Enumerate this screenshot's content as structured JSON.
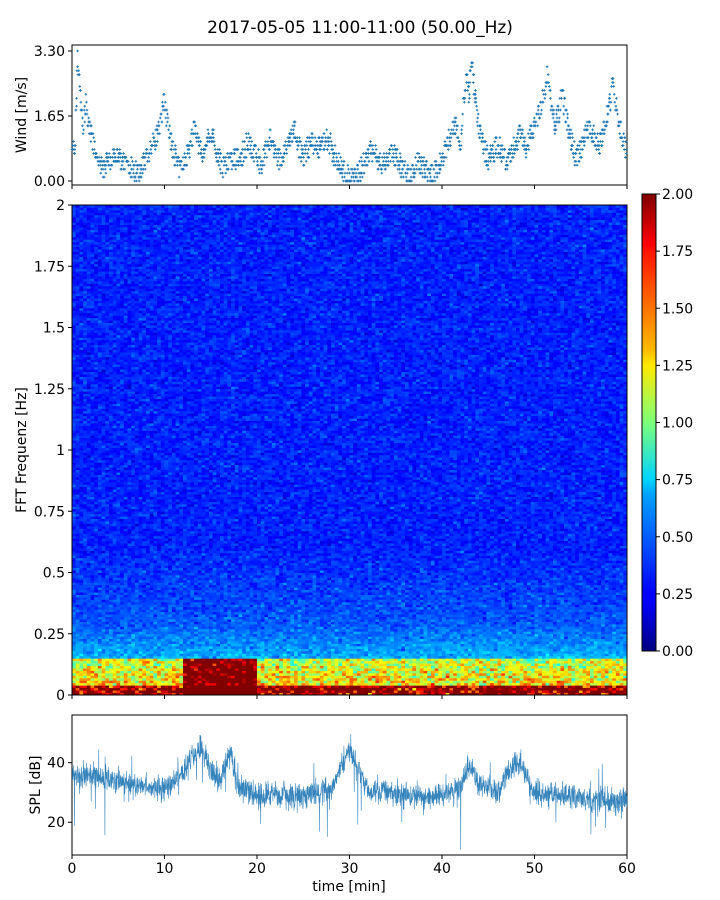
{
  "title": "2017-05-05 11:00-11:00 (50.00_Hz)",
  "chart_data": [
    {
      "type": "scatter",
      "name": "wind",
      "ylabel": "Wind [m/s]",
      "ylim": [
        0,
        3.3
      ],
      "yticks": [
        "0.00",
        "1.65",
        "3.30"
      ],
      "xlim": [
        0,
        60
      ],
      "marker_color": "#1f77b4",
      "points_xy": [
        [
          0.0,
          1.0
        ],
        [
          0.3,
          0.6
        ],
        [
          0.6,
          3.1
        ],
        [
          0.9,
          2.2
        ],
        [
          1.2,
          1.3
        ],
        [
          1.5,
          1.9
        ],
        [
          2.0,
          1.2
        ],
        [
          2.5,
          0.8
        ],
        [
          3.0,
          0.3
        ],
        [
          3.5,
          0.4
        ],
        [
          4.0,
          0.5
        ],
        [
          4.5,
          0.6
        ],
        [
          5.0,
          0.6
        ],
        [
          5.5,
          0.5
        ],
        [
          6.0,
          0.4
        ],
        [
          6.5,
          0.3
        ],
        [
          7.0,
          0.2
        ],
        [
          7.5,
          0.3
        ],
        [
          8.0,
          0.6
        ],
        [
          8.5,
          0.8
        ],
        [
          9.0,
          1.0
        ],
        [
          9.5,
          1.4
        ],
        [
          9.9,
          2.0
        ],
        [
          10.3,
          1.5
        ],
        [
          10.7,
          1.0
        ],
        [
          11.2,
          0.6
        ],
        [
          11.6,
          0.3
        ],
        [
          12.0,
          0.4
        ],
        [
          12.4,
          0.6
        ],
        [
          12.8,
          0.9
        ],
        [
          13.2,
          1.3
        ],
        [
          13.6,
          1.0
        ],
        [
          14.0,
          0.7
        ],
        [
          14.4,
          0.8
        ],
        [
          14.8,
          1.2
        ],
        [
          15.2,
          1.1
        ],
        [
          15.6,
          0.7
        ],
        [
          16.0,
          0.5
        ],
        [
          16.5,
          0.3
        ],
        [
          17.0,
          0.5
        ],
        [
          17.5,
          0.6
        ],
        [
          18.0,
          0.5
        ],
        [
          18.5,
          0.7
        ],
        [
          19.0,
          1.0
        ],
        [
          19.5,
          0.8
        ],
        [
          20.0,
          0.6
        ],
        [
          20.5,
          0.4
        ],
        [
          21.0,
          0.8
        ],
        [
          21.5,
          1.1
        ],
        [
          22.0,
          0.8
        ],
        [
          22.5,
          0.5
        ],
        [
          23.0,
          0.7
        ],
        [
          23.5,
          1.0
        ],
        [
          24.0,
          1.3
        ],
        [
          24.5,
          0.9
        ],
        [
          25.0,
          0.6
        ],
        [
          25.5,
          0.8
        ],
        [
          26.0,
          1.0
        ],
        [
          26.5,
          0.8
        ],
        [
          27.0,
          0.9
        ],
        [
          27.5,
          1.1
        ],
        [
          28.0,
          0.9
        ],
        [
          28.5,
          0.6
        ],
        [
          29.0,
          0.4
        ],
        [
          29.5,
          0.2
        ],
        [
          30.0,
          0.1
        ],
        [
          30.5,
          0.1
        ],
        [
          31.0,
          0.2
        ],
        [
          31.5,
          0.4
        ],
        [
          32.0,
          0.6
        ],
        [
          32.5,
          0.8
        ],
        [
          33.0,
          0.6
        ],
        [
          33.5,
          0.4
        ],
        [
          34.0,
          0.5
        ],
        [
          34.5,
          0.6
        ],
        [
          35.0,
          0.7
        ],
        [
          35.5,
          0.4
        ],
        [
          36.0,
          0.3
        ],
        [
          36.5,
          0.2
        ],
        [
          37.0,
          0.3
        ],
        [
          37.5,
          0.5
        ],
        [
          38.0,
          0.3
        ],
        [
          38.5,
          0.2
        ],
        [
          39.0,
          0.1
        ],
        [
          39.5,
          0.3
        ],
        [
          40.0,
          0.6
        ],
        [
          40.5,
          0.9
        ],
        [
          41.0,
          1.2
        ],
        [
          41.5,
          1.4
        ],
        [
          42.0,
          1.0
        ],
        [
          42.3,
          1.8
        ],
        [
          42.6,
          2.6
        ],
        [
          42.9,
          2.2
        ],
        [
          43.2,
          3.2
        ],
        [
          43.5,
          2.3
        ],
        [
          43.8,
          1.6
        ],
        [
          44.2,
          1.1
        ],
        [
          44.6,
          0.8
        ],
        [
          45.0,
          0.6
        ],
        [
          45.5,
          0.7
        ],
        [
          46.0,
          0.9
        ],
        [
          46.5,
          0.7
        ],
        [
          47.0,
          0.5
        ],
        [
          47.5,
          0.7
        ],
        [
          48.0,
          1.0
        ],
        [
          48.5,
          1.2
        ],
        [
          49.0,
          0.8
        ],
        [
          49.5,
          1.1
        ],
        [
          50.0,
          1.4
        ],
        [
          50.5,
          1.8
        ],
        [
          51.0,
          2.1
        ],
        [
          51.4,
          2.7
        ],
        [
          51.8,
          1.9
        ],
        [
          52.2,
          1.4
        ],
        [
          52.6,
          1.7
        ],
        [
          53.0,
          2.2
        ],
        [
          53.5,
          1.5
        ],
        [
          54.0,
          1.0
        ],
        [
          54.5,
          0.6
        ],
        [
          55.0,
          0.8
        ],
        [
          55.5,
          1.2
        ],
        [
          56.0,
          1.4
        ],
        [
          56.5,
          1.1
        ],
        [
          57.0,
          0.9
        ],
        [
          57.5,
          1.3
        ],
        [
          58.0,
          1.8
        ],
        [
          58.5,
          2.5
        ],
        [
          59.0,
          1.6
        ],
        [
          59.5,
          1.1
        ],
        [
          60.0,
          0.8
        ]
      ]
    },
    {
      "type": "heatmap",
      "name": "spectrogram",
      "ylabel": "FFT Frequenz [Hz]",
      "ylim": [
        0,
        2
      ],
      "yticks": [
        "0",
        "0.25",
        "0.5",
        "0.75",
        "1",
        "1.25",
        "1.5",
        "1.75",
        "2"
      ],
      "xlim": [
        0,
        60
      ],
      "colormap": "jet",
      "clim": [
        0,
        2
      ],
      "colorbar_ticks": [
        "0.00",
        "0.25",
        "0.50",
        "0.75",
        "1.00",
        "1.25",
        "1.50",
        "1.75",
        "2.00"
      ],
      "high_energy_band_hz": [
        0,
        0.15
      ],
      "high_energy_time_min": [
        12,
        20
      ]
    },
    {
      "type": "line",
      "name": "spl",
      "ylabel": "SPL [dB]",
      "ylim": [
        9,
        56
      ],
      "yticks": [
        "20",
        "40"
      ],
      "xlabel": "time [min]",
      "xlim": [
        0,
        60
      ],
      "xticks": [
        "0",
        "10",
        "20",
        "30",
        "40",
        "50",
        "60"
      ],
      "line_color": "#1f77b4",
      "x": [
        0,
        2,
        4,
        6,
        8,
        10,
        11,
        12,
        13,
        14,
        15,
        16,
        17,
        18,
        20,
        22,
        24,
        26,
        28,
        29,
        30,
        31,
        32,
        34,
        36,
        38,
        40,
        42,
        43,
        44,
        46,
        47,
        48,
        49,
        50,
        52,
        54,
        56,
        58,
        60
      ],
      "y": [
        36,
        36,
        34,
        33,
        32,
        31,
        34,
        36,
        42,
        45,
        38,
        33,
        44,
        32,
        29,
        30,
        28,
        30,
        31,
        38,
        45,
        37,
        31,
        30,
        29,
        28,
        29,
        31,
        40,
        33,
        30,
        36,
        41,
        37,
        30,
        29,
        29,
        28,
        27,
        27
      ]
    }
  ]
}
